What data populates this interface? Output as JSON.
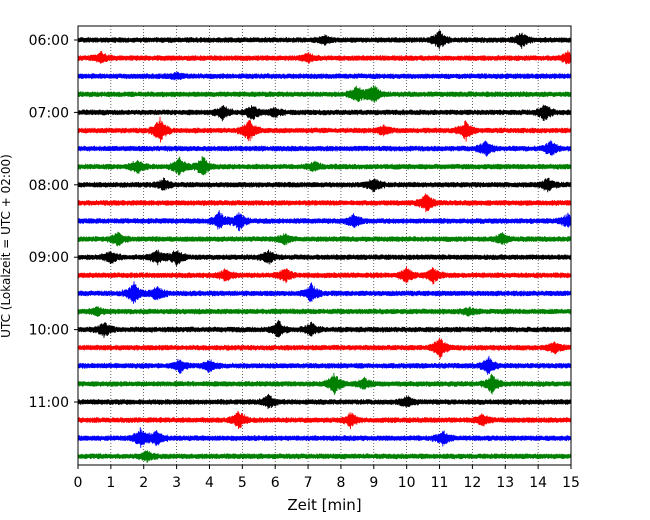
{
  "chart_data": {
    "type": "line",
    "title": "",
    "xlabel": "Zeit  [min]",
    "ylabel": "UTC (Lokalzeit = UTC + 02:00)",
    "xlim": [
      0,
      15
    ],
    "x_ticks": [
      "0",
      "1",
      "2",
      "3",
      "4",
      "5",
      "6",
      "7",
      "8",
      "9",
      "10",
      "11",
      "12",
      "13",
      "14",
      "15"
    ],
    "y_ticks": [
      "06:00",
      "07:00",
      "08:00",
      "09:00",
      "10:00",
      "11:00"
    ],
    "grid": "vertical dotted at each minute",
    "trace_interval_minutes": 15,
    "trace_count": 24,
    "trace_colors": [
      "#000000",
      "#ff0000",
      "#0000ff",
      "#008000"
    ],
    "series": [
      {
        "start": "06:00",
        "color": "#000000",
        "bursts": [
          [
            11.0,
            1.0
          ],
          [
            13.5,
            0.8
          ],
          [
            7.5,
            0.5
          ]
        ]
      },
      {
        "start": "06:15",
        "color": "#ff0000",
        "bursts": [
          [
            0.7,
            0.6
          ],
          [
            7.0,
            0.5
          ],
          [
            14.9,
            0.6
          ]
        ]
      },
      {
        "start": "06:30",
        "color": "#0000ff",
        "bursts": [
          [
            3.0,
            0.3
          ]
        ]
      },
      {
        "start": "06:45",
        "color": "#008000",
        "bursts": [
          [
            8.5,
            1.0
          ],
          [
            9.0,
            1.0
          ]
        ]
      },
      {
        "start": "07:00",
        "color": "#000000",
        "bursts": [
          [
            4.4,
            0.8
          ],
          [
            5.3,
            0.8
          ],
          [
            6.0,
            0.5
          ],
          [
            14.2,
            0.9
          ]
        ]
      },
      {
        "start": "07:15",
        "color": "#ff0000",
        "bursts": [
          [
            2.5,
            1.4
          ],
          [
            5.2,
            1.3
          ],
          [
            11.8,
            1.1
          ],
          [
            9.3,
            0.5
          ]
        ]
      },
      {
        "start": "07:30",
        "color": "#0000ff",
        "bursts": [
          [
            12.4,
            0.8
          ],
          [
            14.4,
            0.9
          ]
        ]
      },
      {
        "start": "07:45",
        "color": "#008000",
        "bursts": [
          [
            1.8,
            0.8
          ],
          [
            3.1,
            1.0
          ],
          [
            3.8,
            1.1
          ],
          [
            7.2,
            0.5
          ]
        ]
      },
      {
        "start": "08:00",
        "color": "#000000",
        "bursts": [
          [
            2.6,
            0.6
          ],
          [
            9.0,
            0.7
          ],
          [
            14.3,
            0.7
          ]
        ]
      },
      {
        "start": "08:15",
        "color": "#ff0000",
        "bursts": [
          [
            10.6,
            1.0
          ]
        ]
      },
      {
        "start": "08:30",
        "color": "#0000ff",
        "bursts": [
          [
            4.3,
            1.0
          ],
          [
            4.9,
            1.0
          ],
          [
            8.4,
            0.8
          ],
          [
            14.9,
            0.7
          ]
        ]
      },
      {
        "start": "08:45",
        "color": "#008000",
        "bursts": [
          [
            1.2,
            0.7
          ],
          [
            6.3,
            0.5
          ],
          [
            12.9,
            0.6
          ]
        ]
      },
      {
        "start": "09:00",
        "color": "#000000",
        "bursts": [
          [
            1.0,
            0.7
          ],
          [
            2.4,
            0.8
          ],
          [
            3.0,
            0.9
          ],
          [
            5.8,
            0.7
          ]
        ]
      },
      {
        "start": "09:15",
        "color": "#ff0000",
        "bursts": [
          [
            4.5,
            0.7
          ],
          [
            6.3,
            0.8
          ],
          [
            10.0,
            0.8
          ],
          [
            10.8,
            0.8
          ]
        ]
      },
      {
        "start": "09:30",
        "color": "#0000ff",
        "bursts": [
          [
            1.7,
            1.2
          ],
          [
            2.4,
            0.8
          ],
          [
            7.1,
            1.0
          ]
        ]
      },
      {
        "start": "09:45",
        "color": "#008000",
        "bursts": [
          [
            0.6,
            0.4
          ],
          [
            11.9,
            0.4
          ]
        ]
      },
      {
        "start": "10:00",
        "color": "#000000",
        "bursts": [
          [
            0.8,
            0.8
          ],
          [
            6.1,
            0.9
          ],
          [
            7.1,
            0.7
          ]
        ]
      },
      {
        "start": "10:15",
        "color": "#ff0000",
        "bursts": [
          [
            11.0,
            1.2
          ],
          [
            14.5,
            0.6
          ]
        ]
      },
      {
        "start": "10:30",
        "color": "#0000ff",
        "bursts": [
          [
            3.1,
            0.7
          ],
          [
            4.0,
            0.6
          ],
          [
            12.5,
            0.9
          ]
        ]
      },
      {
        "start": "10:45",
        "color": "#008000",
        "bursts": [
          [
            7.8,
            1.1
          ],
          [
            12.6,
            1.0
          ],
          [
            8.7,
            0.6
          ]
        ]
      },
      {
        "start": "11:00",
        "color": "#000000",
        "bursts": [
          [
            5.8,
            0.7
          ],
          [
            10.0,
            0.6
          ]
        ]
      },
      {
        "start": "11:15",
        "color": "#ff0000",
        "bursts": [
          [
            4.9,
            1.0
          ],
          [
            8.3,
            0.8
          ],
          [
            12.3,
            0.6
          ]
        ]
      },
      {
        "start": "11:30",
        "color": "#0000ff",
        "bursts": [
          [
            1.9,
            1.0
          ],
          [
            2.4,
            0.9
          ],
          [
            11.1,
            0.8
          ]
        ]
      },
      {
        "start": "11:45",
        "color": "#008000",
        "bursts": [
          [
            2.1,
            0.5
          ]
        ]
      }
    ]
  }
}
